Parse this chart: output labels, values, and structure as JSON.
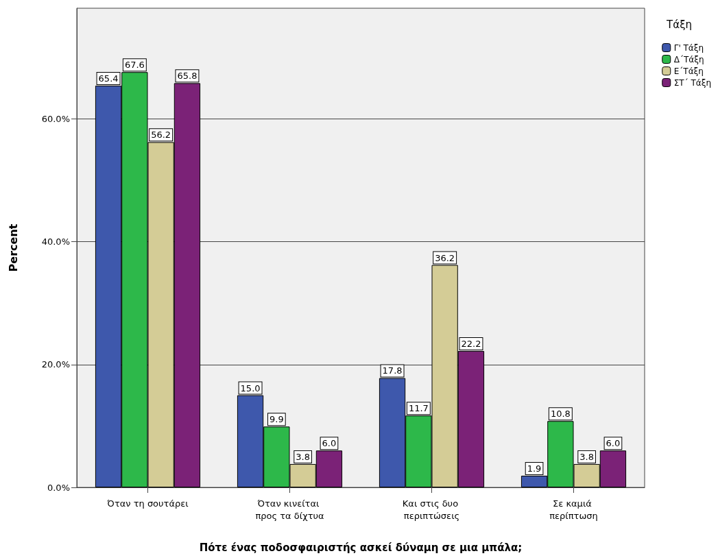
{
  "chart_data": {
    "type": "bar",
    "xlabel": "Πότε ένας ποδοσφαιριστής ασκεί δύναμη σε μια μπάλα;",
    "ylabel": "Percent",
    "legend_title": "Τάξη",
    "categories": [
      "Όταν τη σουτάρει",
      "Όταν κινείται προς τα δίχτυα",
      "Και στις δυο περιπτώσεις",
      "Σε καμιά περίπτωση"
    ],
    "series": [
      {
        "name": "Γ' Τάξη",
        "color": "#3e58ac",
        "values": [
          65.4,
          15.0,
          17.8,
          1.9
        ],
        "value_labels": [
          "65.4",
          "15.0",
          "17.8",
          "1.9"
        ]
      },
      {
        "name": "Δ΄Τάξη",
        "color": "#2db84a",
        "values": [
          67.6,
          9.9,
          11.7,
          10.8
        ],
        "value_labels": [
          "67.6",
          "9.9",
          "11.7",
          "10.8"
        ]
      },
      {
        "name": "Ε΄Τάξη",
        "color": "#d4cc96",
        "values": [
          56.2,
          3.8,
          36.2,
          3.8
        ],
        "value_labels": [
          "56.2",
          "3.8",
          "36.2",
          "3.8"
        ]
      },
      {
        "name": "ΣΤ΄ Τάξη",
        "color": "#7b2277",
        "values": [
          65.8,
          6.0,
          22.2,
          6.0
        ],
        "value_labels": [
          "65.8",
          "6.0",
          "22.2",
          "6.0"
        ]
      }
    ],
    "ylim": [
      0,
      78
    ],
    "yticks": [
      {
        "value": 0,
        "label": "0.0%"
      },
      {
        "value": 20,
        "label": "20.0%"
      },
      {
        "value": 40,
        "label": "40.0%"
      },
      {
        "value": 60,
        "label": "60.0%"
      }
    ],
    "grid": "y",
    "legend": "top right"
  }
}
